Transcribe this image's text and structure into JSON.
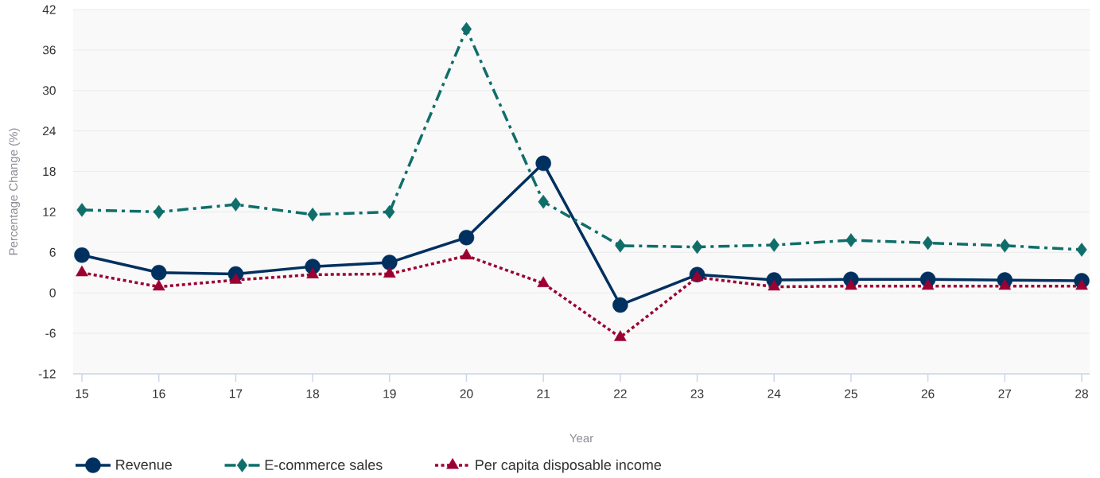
{
  "chart_data": {
    "type": "line",
    "xlabel": "Year",
    "ylabel": "Percentage Change (%)",
    "categories": [
      "15",
      "16",
      "17",
      "18",
      "19",
      "20",
      "21",
      "22",
      "23",
      "24",
      "25",
      "26",
      "27",
      "28"
    ],
    "ylim": [
      -12,
      42
    ],
    "yticks": [
      -12,
      -6,
      0,
      6,
      12,
      18,
      24,
      30,
      36,
      42
    ],
    "grid": "y",
    "legend": "bottom",
    "series": [
      {
        "name": "Revenue",
        "color": "#00305f",
        "marker": "circle",
        "line_style": "solid",
        "values": [
          5.6,
          3.0,
          2.8,
          3.9,
          4.5,
          8.2,
          19.2,
          -1.8,
          2.7,
          1.9,
          2.0,
          2.0,
          1.9,
          1.8
        ]
      },
      {
        "name": "E-commerce sales",
        "color": "#0f6e6a",
        "marker": "diamond",
        "line_style": "dashdot",
        "values": [
          12.3,
          12.0,
          13.1,
          11.6,
          12.0,
          39.1,
          13.5,
          7.0,
          6.8,
          7.1,
          7.8,
          7.4,
          7.0,
          6.4
        ]
      },
      {
        "name": "Per capita disposable income",
        "color": "#9b0032",
        "marker": "triangle",
        "line_style": "dotted",
        "values": [
          3.0,
          0.9,
          1.9,
          2.7,
          2.8,
          5.5,
          1.4,
          -6.6,
          2.3,
          0.9,
          1.0,
          1.0,
          1.0,
          1.0
        ]
      }
    ]
  }
}
